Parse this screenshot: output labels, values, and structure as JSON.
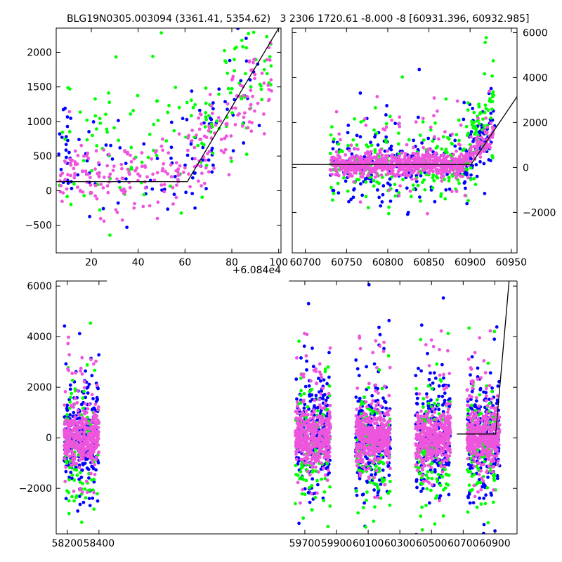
{
  "titles": {
    "left": "BLG19N0305.003094 (3361.41, 5354.62)",
    "right": "3 2306 1720.61 -8.000 -8 [60931.396, 60932.985]"
  },
  "offset_label": "+6.084e4",
  "colors": {
    "blue": "#0000ff",
    "green": "#00ff00",
    "pink": "#ee55dd",
    "model": "#000000"
  },
  "chart_data": [
    {
      "name": "zoom-left",
      "type": "scatter",
      "title": "BLG19N0305.003094 (3361.41, 5354.62)",
      "xlim": [
        5,
        101
      ],
      "ylim": [
        -900,
        2350
      ],
      "xticks": [
        20,
        40,
        60,
        80,
        100
      ],
      "xtick_labels": [
        "20",
        "40",
        "60",
        "80",
        "100"
      ],
      "yticks": [
        -500,
        0,
        500,
        1000,
        1500,
        2000
      ],
      "ytick_labels": [
        "−500",
        "0",
        "500",
        "1000",
        "1500",
        "2000"
      ],
      "x_offset": "+6.084e4",
      "model_line": {
        "x": [
          5,
          61,
          100
        ],
        "y": [
          130,
          130,
          2350
        ]
      },
      "series": [
        {
          "name": "blue",
          "color": "#0000ff",
          "segments": [
            {
              "x0": 6,
              "x1": 12,
              "n": 22,
              "mu": 700,
              "sd": 330
            },
            {
              "x0": 12,
              "x1": 60,
              "n": 40,
              "mu": 300,
              "sd": 380
            },
            {
              "x0": 60,
              "x1": 92,
              "n": 55,
              "trend": [
                350,
                1800
              ],
              "sd": 380
            }
          ]
        },
        {
          "name": "green",
          "color": "#00ff00",
          "segments": [
            {
              "x0": 6,
              "x1": 60,
              "n": 70,
              "mu": 650,
              "sd": 500
            },
            {
              "x0": 60,
              "x1": 97,
              "n": 80,
              "trend": [
                700,
                2100
              ],
              "sd": 450
            }
          ]
        },
        {
          "name": "pink",
          "color": "#ee55dd",
          "segments": [
            {
              "x0": 6,
              "x1": 60,
              "n": 150,
              "mu": 230,
              "sd": 260
            },
            {
              "x0": 60,
              "x1": 97,
              "n": 110,
              "trend": [
                350,
                1600
              ],
              "sd": 320
            }
          ]
        }
      ]
    },
    {
      "name": "zoom-right",
      "type": "scatter",
      "title": "3 2306 1720.61 -8.000 -8 [60931.396, 60932.985]",
      "xlim": [
        60684,
        60957
      ],
      "ylim": [
        -3800,
        6200
      ],
      "xticks": [
        60700,
        60750,
        60800,
        60850,
        60900,
        60950
      ],
      "xtick_labels": [
        "60700",
        "60750",
        "60800",
        "60850",
        "60900",
        "60950"
      ],
      "yticks": [
        -2000,
        0,
        2000,
        4000,
        6000
      ],
      "ytick_labels": [
        "−2000",
        "0",
        "2000",
        "4000",
        "6000"
      ],
      "yaxis_side": "right",
      "model_line": {
        "x": [
          60684,
          60901,
          60957
        ],
        "y": [
          130,
          130,
          3150
        ]
      },
      "series": [
        {
          "name": "blue",
          "color": "#0000ff",
          "segments": [
            {
              "x0": 60730,
              "x1": 60893,
              "n": 180,
              "mu": 150,
              "sd": 900
            },
            {
              "x0": 60893,
              "x1": 60930,
              "n": 90,
              "trend": [
                300,
                1900
              ],
              "sd": 600
            }
          ]
        },
        {
          "name": "green",
          "color": "#00ff00",
          "segments": [
            {
              "x0": 60730,
              "x1": 60893,
              "n": 200,
              "mu": 150,
              "sd": 700
            },
            {
              "x0": 60893,
              "x1": 60930,
              "n": 80,
              "trend": [
                500,
                3200
              ],
              "sd": 900
            }
          ]
        },
        {
          "name": "pink",
          "color": "#ee55dd",
          "segments": [
            {
              "x0": 60730,
              "x1": 60893,
              "n": 750,
              "mu": 130,
              "sd": 240
            },
            {
              "x0": 60893,
              "x1": 60930,
              "n": 90,
              "trend": [
                300,
                1600
              ],
              "sd": 300
            }
          ]
        }
      ]
    },
    {
      "name": "full-lightcurve",
      "type": "scatter",
      "xlim": [
        58130,
        61040
      ],
      "ylim": [
        -3800,
        6200
      ],
      "xticks": [
        58200,
        58400,
        59700,
        59900,
        60100,
        60300,
        60500,
        60700,
        60900
      ],
      "xtick_labels": [
        "58200",
        "58400",
        "59700",
        "59900",
        "60100",
        "60300",
        "60500",
        "60700",
        "60900"
      ],
      "yticks": [
        -2000,
        0,
        2000,
        4000,
        6000
      ],
      "ytick_labels": [
        "−2000",
        "0",
        "2000",
        "4000",
        "6000"
      ],
      "axis_gap": [
        58450,
        59600
      ],
      "model_line": {
        "x": [
          60660,
          60905,
          60990
        ],
        "y": [
          150,
          150,
          6200
        ]
      },
      "seasons": [
        {
          "x0": 58180,
          "x1": 58400
        },
        {
          "x0": 59640,
          "x1": 59860
        },
        {
          "x0": 60020,
          "x1": 60240
        },
        {
          "x0": 60400,
          "x1": 60620
        },
        {
          "x0": 60725,
          "x1": 60930
        }
      ],
      "series": [
        {
          "name": "blue",
          "color": "#0000ff",
          "n_per_season": 230,
          "mu": 0,
          "sd": 1100
        },
        {
          "name": "green",
          "color": "#00ff00",
          "n_per_season": 110,
          "mu": -400,
          "sd": 1300
        },
        {
          "name": "pink",
          "color": "#ee55dd",
          "n_per_season": 420,
          "mu": 0,
          "sd": 520
        }
      ]
    }
  ]
}
